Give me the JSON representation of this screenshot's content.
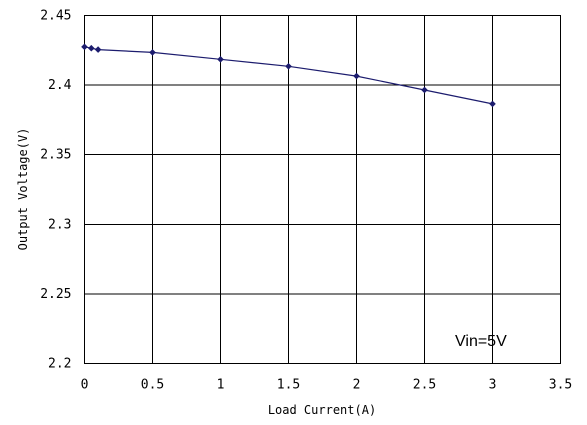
{
  "chart_data": {
    "type": "line",
    "title": "",
    "xlabel": "Load Current(A)",
    "ylabel": "Output Voltage(V)",
    "xlim": [
      0,
      3.5
    ],
    "ylim": [
      2.2,
      2.45
    ],
    "x_ticks": [
      "0",
      "0.5",
      "1",
      "1.5",
      "2",
      "2.5",
      "3",
      "3.5"
    ],
    "y_ticks": [
      "2.2",
      "2.25",
      "2.3",
      "2.35",
      "2.4",
      "2.45"
    ],
    "x_tick_values": [
      0,
      0.5,
      1,
      1.5,
      2,
      2.5,
      3,
      3.5
    ],
    "y_tick_values": [
      2.2,
      2.25,
      2.3,
      2.35,
      2.4,
      2.45
    ],
    "grid": true,
    "annotation": "Vin=5V",
    "series": [
      {
        "x": [
          0,
          0.05,
          0.1,
          0.5,
          1,
          1.5,
          2,
          2.5,
          3
        ],
        "y": [
          2.4275,
          2.4265,
          2.4255,
          2.4235,
          2.4185,
          2.4135,
          2.4065,
          2.3965,
          2.3865
        ],
        "color": "#1c1c6e"
      }
    ]
  }
}
